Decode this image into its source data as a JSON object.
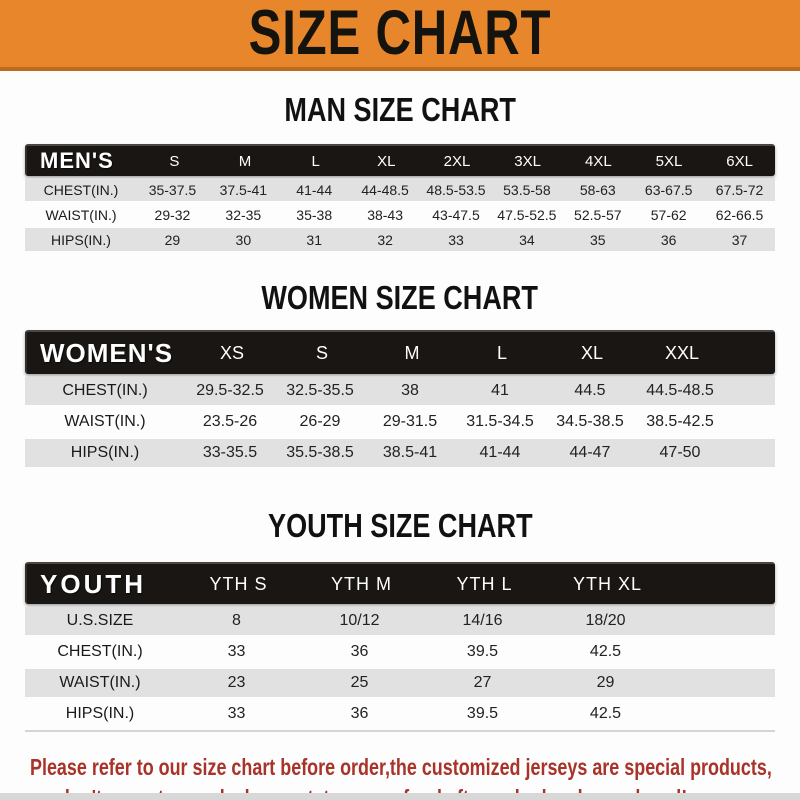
{
  "colors": {
    "accent_orange": "#E8862C",
    "accent_orange_dark": "#BC6A1D",
    "band_black": "#191613",
    "stripe_gray": "#E1E1E1",
    "footer_red": "#A93229",
    "text_dark": "#222222"
  },
  "banner": {
    "title": "SIZE CHART"
  },
  "men": {
    "heading": "MAN SIZE CHART",
    "table": {
      "label": "MEN'S",
      "columns": [
        "S",
        "M",
        "L",
        "XL",
        "2XL",
        "3XL",
        "4XL",
        "5XL",
        "6XL"
      ],
      "rows": [
        {
          "label": "CHEST(IN.)",
          "values": [
            "35-37.5",
            "37.5-41",
            "41-44",
            "44-48.5",
            "48.5-53.5",
            "53.5-58",
            "58-63",
            "63-67.5",
            "67.5-72"
          ]
        },
        {
          "label": "WAIST(IN.)",
          "values": [
            "29-32",
            "32-35",
            "35-38",
            "38-43",
            "43-47.5",
            "47.5-52.5",
            "52.5-57",
            "57-62",
            "62-66.5"
          ]
        },
        {
          "label": "HIPS(IN.)",
          "values": [
            "29",
            "30",
            "31",
            "32",
            "33",
            "34",
            "35",
            "36",
            "37"
          ]
        }
      ]
    }
  },
  "women": {
    "heading": "WOMEN SIZE CHART",
    "table": {
      "label": "WOMEN'S",
      "columns": [
        "XS",
        "S",
        "M",
        "L",
        "XL",
        "XXL"
      ],
      "rows": [
        {
          "label": "CHEST(IN.)",
          "values": [
            "29.5-32.5",
            "32.5-35.5",
            "38",
            "41",
            "44.5",
            "44.5-48.5"
          ]
        },
        {
          "label": "WAIST(IN.)",
          "values": [
            "23.5-26",
            "26-29",
            "29-31.5",
            "31.5-34.5",
            "34.5-38.5",
            "38.5-42.5"
          ]
        },
        {
          "label": "HIPS(IN.)",
          "values": [
            "33-35.5",
            "35.5-38.5",
            "38.5-41",
            "41-44",
            "44-47",
            "47-50"
          ]
        }
      ]
    }
  },
  "youth": {
    "heading": "YOUTH SIZE CHART",
    "table": {
      "label": "YOUTH",
      "columns": [
        "YTH S",
        "YTH M",
        "YTH L",
        "YTH XL"
      ],
      "rows": [
        {
          "label": "U.S.SIZE",
          "values": [
            "8",
            "10/12",
            "14/16",
            "18/20"
          ]
        },
        {
          "label": "CHEST(IN.)",
          "values": [
            "33",
            "36",
            "39.5",
            "42.5"
          ]
        },
        {
          "label": "WAIST(IN.)",
          "values": [
            "23",
            "25",
            "27",
            "29"
          ]
        },
        {
          "label": "HIPS(IN.)",
          "values": [
            "33",
            "36",
            "39.5",
            "42.5"
          ]
        }
      ]
    }
  },
  "footer": {
    "line1": "Please refer to our size chart before order,the customized jerseys are special products,",
    "line2": "we don't accept cancel, change, teturn or refund after order has been placed!"
  }
}
